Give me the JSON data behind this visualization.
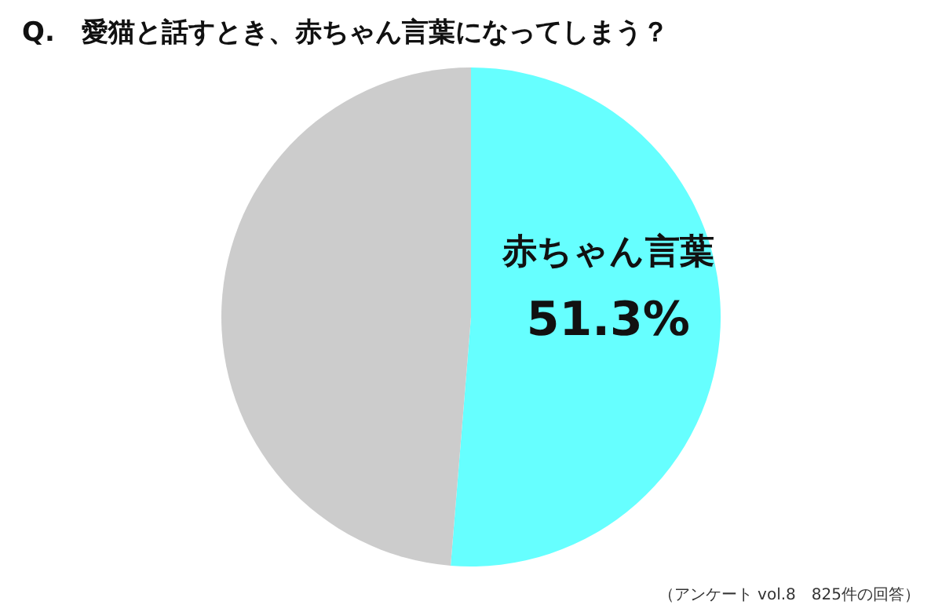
{
  "chart_data": {
    "type": "pie",
    "title": "Q.　愛猫と話すとき、赤ちゃん言葉になってしまう？",
    "categories": [
      "赤ちゃん言葉",
      null
    ],
    "values": [
      51.3,
      48.7
    ],
    "colors": [
      "#66ffff",
      "#cccccc"
    ],
    "value_labels": [
      "51.3%",
      null
    ],
    "annotations": [
      "（アンケート vol.8　825件の回答）"
    ]
  }
}
